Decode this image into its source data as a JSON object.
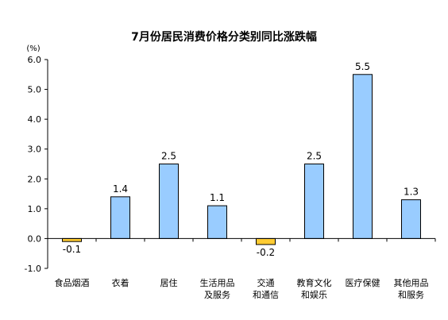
{
  "chart_data": {
    "type": "bar",
    "title": "7月份居民消费价格分类别同比涨跌幅",
    "ylabel": "(%)",
    "ylim": [
      -1.0,
      6.0
    ],
    "yticks": [
      "6.0",
      "5.0",
      "4.0",
      "3.0",
      "2.0",
      "1.0",
      "0.0",
      "-1.0"
    ],
    "ytick_values": [
      6,
      5,
      4,
      3,
      2,
      1,
      0,
      -1
    ],
    "grid": false,
    "categories": [
      [
        "食品烟酒"
      ],
      [
        "衣着"
      ],
      [
        "居住"
      ],
      [
        "生活用品",
        "及服务"
      ],
      [
        "交通",
        "和通信"
      ],
      [
        "教育文化",
        "和娱乐"
      ],
      [
        "医疗保健"
      ],
      [
        "其他用品",
        "和服务"
      ]
    ],
    "values": [
      -0.1,
      1.4,
      2.5,
      1.1,
      -0.2,
      2.5,
      5.5,
      1.3
    ],
    "value_labels": [
      "-0.1",
      "1.4",
      "2.5",
      "1.1",
      "-0.2",
      "2.5",
      "5.5",
      "1.3"
    ],
    "colors": {
      "positive": "#99ccff",
      "negative": "#ffcc33",
      "outline": "#000000"
    }
  }
}
